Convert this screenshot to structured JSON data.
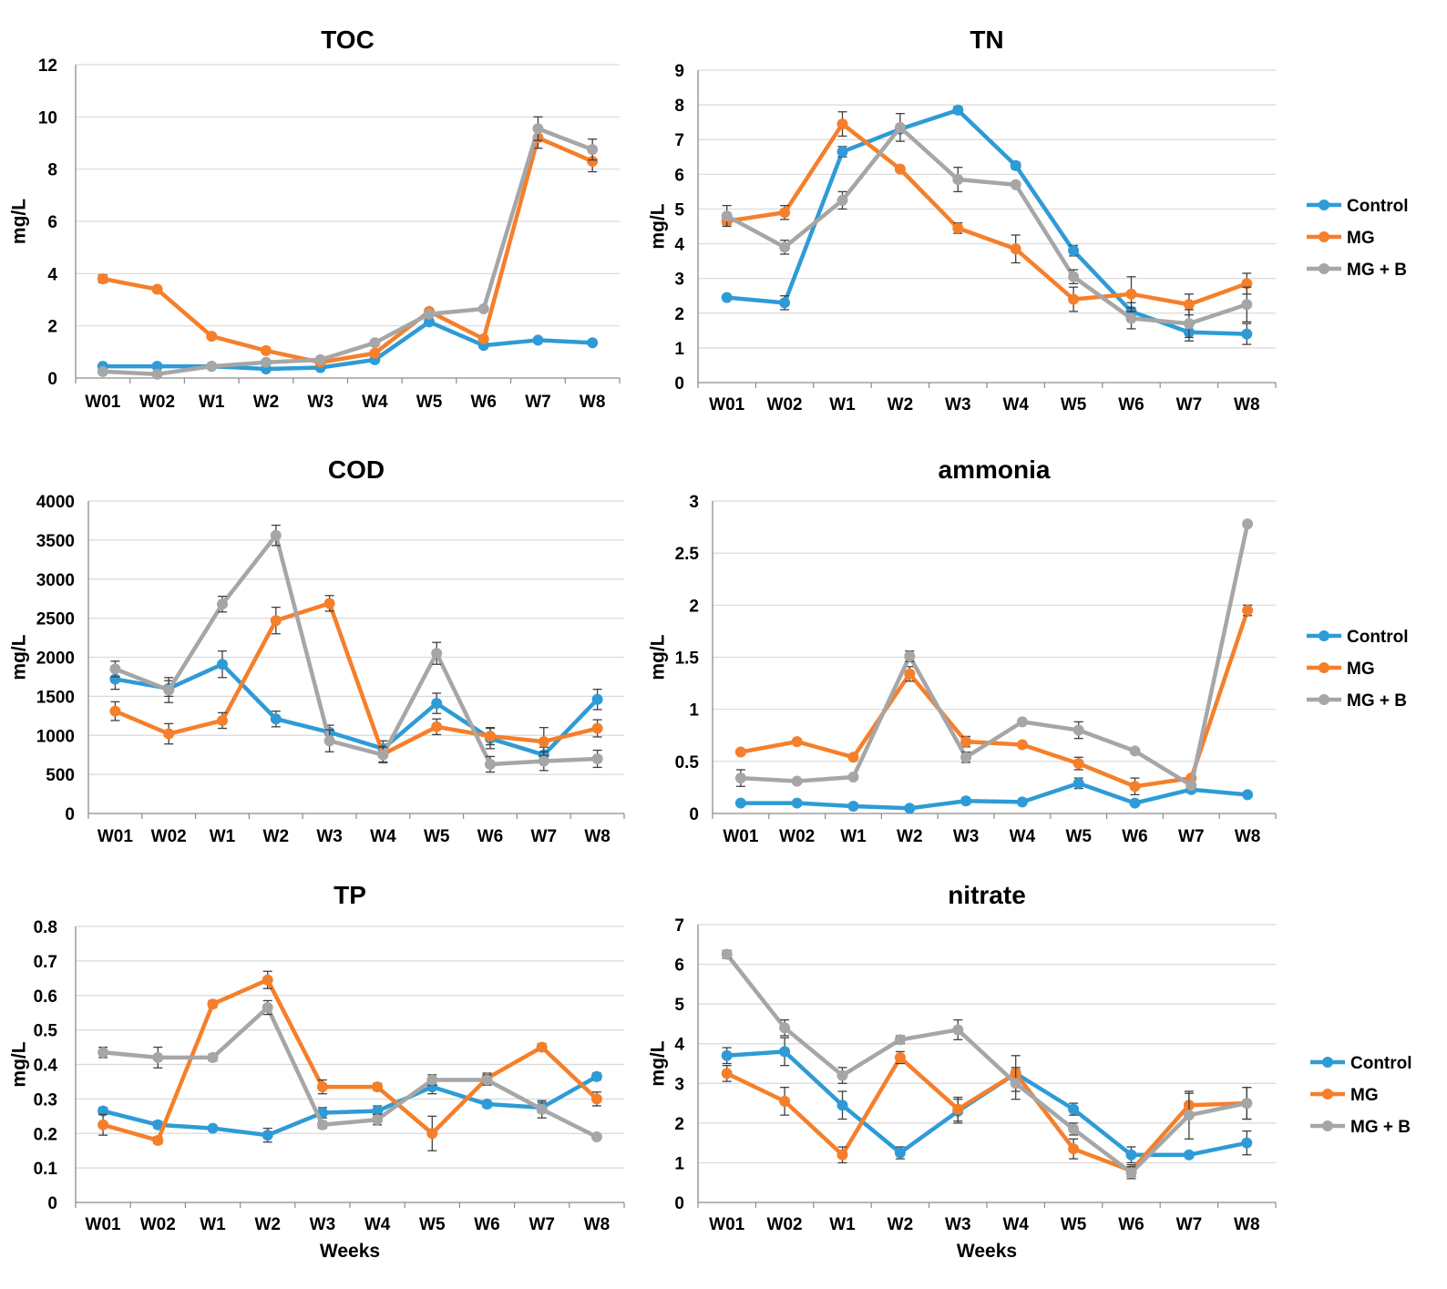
{
  "colors": {
    "Control": "#2E9BD6",
    "MG": "#F57F2A",
    "MG + B": "#A6A6A6",
    "grid": "#D9D9D9",
    "axis": "#8C8C8C",
    "errorbar": "#404040"
  },
  "legend_labels": [
    "Control",
    "MG",
    "MG + B"
  ],
  "chart_data": [
    {
      "type": "line",
      "title": "TOC",
      "xlabel": "",
      "ylabel": "mg/L",
      "categories": [
        "W01",
        "W02",
        "W1",
        "W2",
        "W3",
        "W4",
        "W5",
        "W6",
        "W7",
        "W8"
      ],
      "ylim": [
        0,
        12
      ],
      "yticks": [
        0,
        2,
        4,
        6,
        8,
        10,
        12
      ],
      "ytick_labels": [
        "0",
        "2",
        "4",
        "6",
        "8",
        "10",
        "12"
      ],
      "legend": false,
      "series": [
        {
          "name": "Control",
          "values": [
            0.45,
            0.45,
            0.45,
            0.35,
            0.4,
            0.7,
            2.15,
            1.25,
            1.45,
            1.35
          ],
          "errors": [
            0.05,
            0.05,
            0.05,
            0.05,
            0.05,
            0.1,
            0.1,
            0.08,
            0.05,
            0.05
          ]
        },
        {
          "name": "MG",
          "values": [
            3.8,
            3.4,
            1.6,
            1.05,
            0.6,
            0.95,
            2.55,
            1.5,
            9.2,
            8.3
          ],
          "errors": [
            0.15,
            0.1,
            0.08,
            0.05,
            0.05,
            0.1,
            0.1,
            0.1,
            0.4,
            0.4
          ]
        },
        {
          "name": "MG + B",
          "values": [
            0.25,
            0.15,
            0.45,
            0.6,
            0.7,
            1.35,
            2.45,
            2.65,
            9.55,
            8.75
          ],
          "errors": [
            0.05,
            0.05,
            0.05,
            0.05,
            0.05,
            0.1,
            0.1,
            0.1,
            0.45,
            0.4
          ]
        }
      ]
    },
    {
      "type": "line",
      "title": "TN",
      "xlabel": "",
      "ylabel": "mg/L",
      "categories": [
        "W01",
        "W02",
        "W1",
        "W2",
        "W3",
        "W4",
        "W5",
        "W6",
        "W7",
        "W8"
      ],
      "ylim": [
        0,
        9
      ],
      "yticks": [
        0,
        1,
        2,
        3,
        4,
        5,
        6,
        7,
        8,
        9
      ],
      "ytick_labels": [
        "0",
        "1",
        "2",
        "3",
        "4",
        "5",
        "6",
        "7",
        "8",
        "9"
      ],
      "legend": true,
      "series": [
        {
          "name": "Control",
          "values": [
            2.45,
            2.3,
            6.65,
            7.3,
            7.85,
            6.25,
            3.8,
            2.05,
            1.45,
            1.4
          ],
          "errors": [
            0.05,
            0.2,
            0.15,
            0.1,
            0.1,
            0.1,
            0.15,
            0.25,
            0.25,
            0.3
          ]
        },
        {
          "name": "MG",
          "values": [
            4.65,
            4.9,
            7.45,
            6.15,
            4.45,
            3.85,
            2.4,
            2.55,
            2.25,
            2.85
          ],
          "errors": [
            0.1,
            0.2,
            0.35,
            0.05,
            0.15,
            0.4,
            0.35,
            0.5,
            0.3,
            0.3
          ]
        },
        {
          "name": "MG + B",
          "values": [
            4.8,
            3.9,
            5.25,
            7.35,
            5.85,
            5.7,
            3.05,
            1.85,
            1.7,
            2.25
          ],
          "errors": [
            0.3,
            0.2,
            0.25,
            0.4,
            0.35,
            0.05,
            0.2,
            0.3,
            0.4,
            0.5
          ]
        }
      ]
    },
    {
      "type": "line",
      "title": "COD",
      "xlabel": "",
      "ylabel": "mg/L",
      "categories": [
        "W01",
        "W02",
        "W1",
        "W2",
        "W3",
        "W4",
        "W5",
        "W6",
        "W7",
        "W8"
      ],
      "ylim": [
        0,
        4000
      ],
      "yticks": [
        0,
        500,
        1000,
        1500,
        2000,
        2500,
        3000,
        3500,
        4000
      ],
      "ytick_labels": [
        "0",
        "500",
        "1000",
        "1500",
        "2000",
        "2500",
        "3000",
        "3500",
        "4000"
      ],
      "legend": false,
      "series": [
        {
          "name": "Control",
          "values": [
            1720,
            1600,
            1910,
            1210,
            1040,
            830,
            1410,
            960,
            750,
            1460
          ],
          "errors": [
            130,
            100,
            170,
            100,
            90,
            100,
            130,
            130,
            100,
            130
          ]
        },
        {
          "name": "MG",
          "values": [
            1310,
            1020,
            1190,
            2470,
            2690,
            760,
            1110,
            990,
            920,
            1090
          ],
          "errors": [
            120,
            130,
            100,
            170,
            100,
            100,
            100,
            110,
            180,
            110
          ]
        },
        {
          "name": "MG + B",
          "values": [
            1850,
            1580,
            2680,
            3560,
            930,
            750,
            2050,
            630,
            670,
            700
          ],
          "errors": [
            100,
            160,
            100,
            130,
            140,
            100,
            140,
            100,
            120,
            110
          ]
        }
      ]
    },
    {
      "type": "line",
      "title": "ammonia",
      "xlabel": "",
      "ylabel": "mg/L",
      "categories": [
        "W01",
        "W02",
        "W1",
        "W2",
        "W3",
        "W4",
        "W5",
        "W6",
        "W7",
        "W8"
      ],
      "ylim": [
        0,
        3
      ],
      "yticks": [
        0,
        0.5,
        1,
        1.5,
        2,
        2.5,
        3
      ],
      "ytick_labels": [
        "0",
        "0.5",
        "1",
        "1.5",
        "2",
        "2.5",
        "3"
      ],
      "legend": true,
      "series": [
        {
          "name": "Control",
          "values": [
            0.1,
            0.1,
            0.07,
            0.05,
            0.12,
            0.11,
            0.29,
            0.1,
            0.23,
            0.18
          ],
          "errors": [
            0.01,
            0.01,
            0.01,
            0.01,
            0.03,
            0.01,
            0.05,
            0.01,
            0.03,
            0.01
          ]
        },
        {
          "name": "MG",
          "values": [
            0.59,
            0.69,
            0.54,
            1.34,
            0.69,
            0.66,
            0.48,
            0.26,
            0.34,
            1.95
          ],
          "errors": [
            0.01,
            0.01,
            0.01,
            0.07,
            0.05,
            0.01,
            0.06,
            0.08,
            0.02,
            0.05
          ]
        },
        {
          "name": "MG + B",
          "values": [
            0.34,
            0.31,
            0.35,
            1.51,
            0.54,
            0.88,
            0.8,
            0.6,
            0.27,
            2.78
          ],
          "errors": [
            0.08,
            0.01,
            0.01,
            0.05,
            0.05,
            0.01,
            0.08,
            0.01,
            0.02,
            0.01
          ]
        }
      ]
    },
    {
      "type": "line",
      "title": "TP",
      "xlabel": "Weeks",
      "ylabel": "mg/L",
      "categories": [
        "W01",
        "W02",
        "W1",
        "W2",
        "W3",
        "W4",
        "W5",
        "W6",
        "W7",
        "W8"
      ],
      "ylim": [
        0,
        0.8
      ],
      "yticks": [
        0,
        0.1,
        0.2,
        0.3,
        0.4,
        0.5,
        0.6,
        0.7,
        0.8
      ],
      "ytick_labels": [
        "0",
        "0.1",
        "0.2",
        "0.3",
        "0.4",
        "0.5",
        "0.6",
        "0.7",
        "0.8"
      ],
      "legend": false,
      "series": [
        {
          "name": "Control",
          "values": [
            0.265,
            0.225,
            0.215,
            0.195,
            0.26,
            0.265,
            0.335,
            0.285,
            0.275,
            0.365
          ],
          "errors": [
            0.01,
            0.01,
            0.005,
            0.02,
            0.015,
            0.015,
            0.02,
            0.01,
            0.015,
            0.01
          ]
        },
        {
          "name": "MG",
          "values": [
            0.225,
            0.18,
            0.575,
            0.645,
            0.335,
            0.335,
            0.2,
            0.36,
            0.45,
            0.3
          ],
          "errors": [
            0.03,
            0.01,
            0.01,
            0.025,
            0.02,
            0.01,
            0.05,
            0.015,
            0.01,
            0.02
          ]
        },
        {
          "name": "MG + B",
          "values": [
            0.435,
            0.42,
            0.42,
            0.565,
            0.225,
            0.24,
            0.355,
            0.355,
            0.27,
            0.19
          ],
          "errors": [
            0.015,
            0.03,
            0.01,
            0.02,
            0.01,
            0.015,
            0.015,
            0.015,
            0.025,
            0.005
          ]
        }
      ]
    },
    {
      "type": "line",
      "title": "nitrate",
      "xlabel": "Weeks",
      "ylabel": "mg/L",
      "categories": [
        "W01",
        "W02",
        "W1",
        "W2",
        "W3",
        "W4",
        "W5",
        "W6",
        "W7",
        "W8"
      ],
      "ylim": [
        0,
        7
      ],
      "yticks": [
        0,
        1,
        2,
        3,
        4,
        5,
        6,
        7
      ],
      "ytick_labels": [
        "0",
        "1",
        "2",
        "3",
        "4",
        "5",
        "6",
        "7"
      ],
      "legend": true,
      "series": [
        {
          "name": "Control",
          "values": [
            3.7,
            3.8,
            2.45,
            1.25,
            2.3,
            3.25,
            2.35,
            1.2,
            1.2,
            1.5
          ],
          "errors": [
            0.2,
            0.35,
            0.35,
            0.15,
            0.3,
            0.1,
            0.15,
            0.2,
            0.05,
            0.3
          ]
        },
        {
          "name": "MG",
          "values": [
            3.25,
            2.55,
            1.2,
            3.65,
            2.35,
            3.25,
            1.35,
            0.8,
            2.45,
            2.5
          ],
          "errors": [
            0.2,
            0.35,
            0.2,
            0.15,
            0.3,
            0.45,
            0.25,
            0.15,
            0.3,
            0.4
          ]
        },
        {
          "name": "MG + B",
          "values": [
            6.25,
            4.4,
            3.2,
            4.1,
            4.35,
            3.0,
            1.85,
            0.75,
            2.2,
            2.5
          ],
          "errors": [
            0.1,
            0.2,
            0.2,
            0.1,
            0.25,
            0.4,
            0.15,
            0.15,
            0.6,
            0.4
          ]
        }
      ]
    }
  ]
}
